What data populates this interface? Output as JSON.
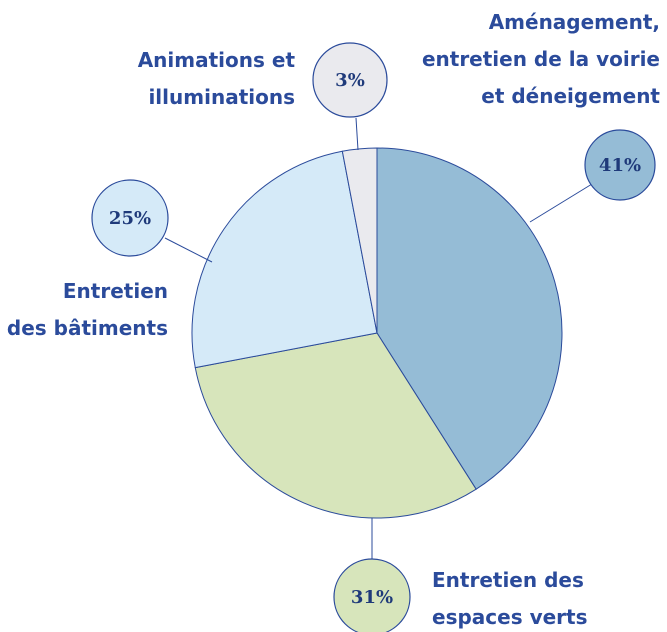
{
  "chart_data": {
    "type": "pie",
    "categories": [
      "Aménagement,\nentretien de la voirie\net déneigement",
      "Entretien des\nespaces verts",
      "Entretien\ndes bâtiments",
      "Animations et\nilluminations"
    ],
    "values": [
      41,
      31,
      25,
      3
    ],
    "value_labels": [
      "41%",
      "31%",
      "25%",
      "3%"
    ],
    "colors": [
      "#95bcd6",
      "#d7e5bb",
      "#d5eaf8",
      "#eaeaee"
    ]
  }
}
